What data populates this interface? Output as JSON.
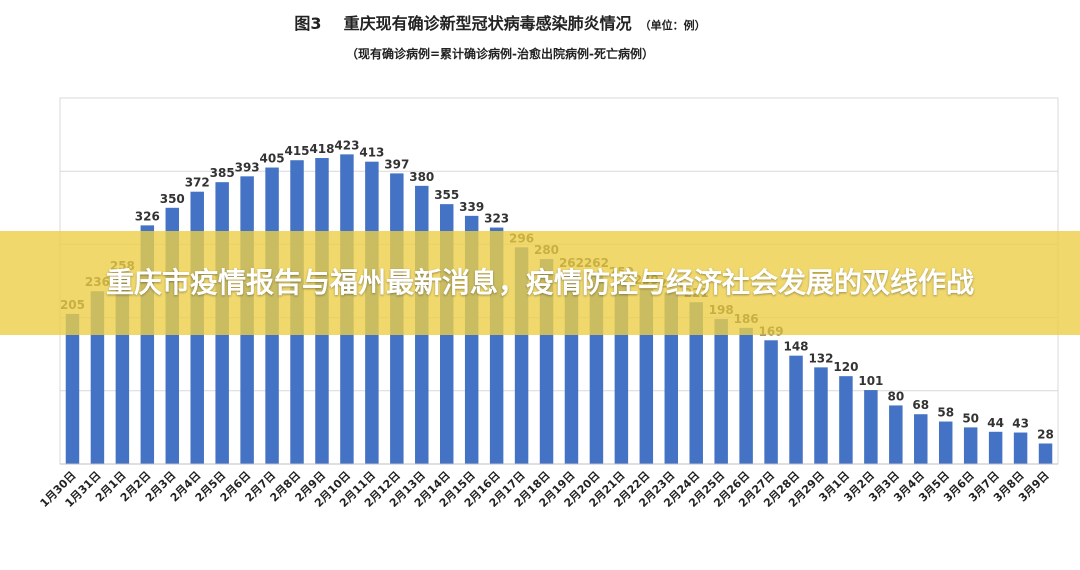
{
  "figure": {
    "number": "图3",
    "title": "重庆现有确诊新型冠状病毒感染肺炎情况",
    "unit": "（单位：例）",
    "subtitle": "（现有确诊病例=累计确诊病例-治愈出院病例-死亡病例）"
  },
  "banner": {
    "headline": "重庆市疫情报告与福州最新消息，疫情防控与经济社会发展的双线作战"
  },
  "colors": {
    "bar": "#4472c4",
    "banner": "#ecce48"
  },
  "chart_data": {
    "type": "bar",
    "title": "重庆现有确诊新型冠状病毒感染肺炎情况",
    "xlabel": "",
    "ylabel": "",
    "ylim": [
      0,
      500
    ],
    "grid": true,
    "categories": [
      "1月30日",
      "1月31日",
      "2月1日",
      "2月2日",
      "2月3日",
      "2月4日",
      "2月5日",
      "2月6日",
      "2月7日",
      "2月8日",
      "2月9日",
      "2月10日",
      "2月11日",
      "2月12日",
      "2月13日",
      "2月14日",
      "2月15日",
      "2月16日",
      "2月17日",
      "2月18日",
      "2月19日",
      "2月20日",
      "2月21日",
      "2月22日",
      "2月23日",
      "2月24日",
      "2月25日",
      "2月26日",
      "2月27日",
      "2月28日",
      "2月29日",
      "3月1日",
      "3月2日",
      "3月3日",
      "3月4日",
      "3月5日",
      "3月6日",
      "3月7日",
      "3月8日",
      "3月9日"
    ],
    "values": [
      205,
      236,
      258,
      326,
      350,
      372,
      385,
      393,
      405,
      415,
      418,
      423,
      413,
      397,
      380,
      355,
      339,
      323,
      296,
      280,
      262,
      262,
      250,
      239,
      234,
      221,
      198,
      186,
      169,
      148,
      132,
      120,
      101,
      80,
      68,
      58,
      50,
      44,
      43,
      28
    ]
  }
}
